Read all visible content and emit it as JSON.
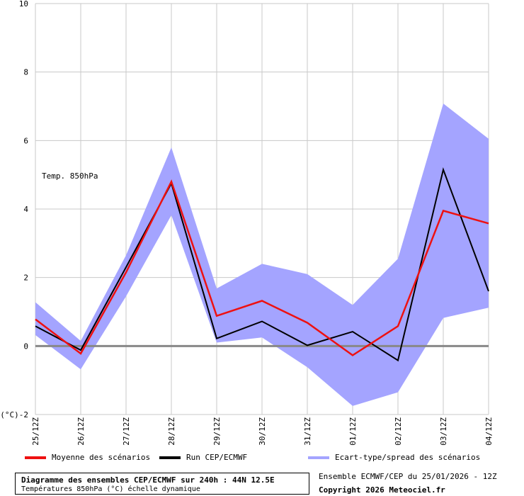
{
  "chart_data": {
    "type": "line",
    "annotation": "Temp. 850hPa",
    "ylabel": "(°C)",
    "ylim": [
      -2,
      10
    ],
    "yticks": [
      "10",
      "8",
      "6",
      "4",
      "2",
      "0",
      "-2"
    ],
    "ytick_values": [
      10,
      8,
      6,
      4,
      2,
      0,
      -2
    ],
    "categories": [
      "25/12Z",
      "26/12Z",
      "27/12Z",
      "28/12Z",
      "29/12Z",
      "30/12Z",
      "31/12Z",
      "01/12Z",
      "02/12Z",
      "03/12Z",
      "04/12Z"
    ],
    "grid": true,
    "series": [
      {
        "name": "Moyenne des scénarios",
        "color": "#ee1111",
        "values": [
          0.78,
          -0.22,
          2.15,
          4.8,
          0.88,
          1.32,
          0.68,
          -0.27,
          0.58,
          3.95,
          3.58
        ]
      },
      {
        "name": "Run CEP/ECMWF",
        "color": "#000000",
        "values": [
          0.58,
          -0.12,
          2.3,
          4.75,
          0.22,
          0.72,
          0.02,
          0.42,
          -0.42,
          5.15,
          1.6
        ]
      }
    ],
    "spread": {
      "name": "Ecart-type/spread des scénarios",
      "color": "#a4a4ff",
      "upper": [
        1.28,
        0.15,
        2.65,
        5.8,
        1.68,
        2.4,
        2.1,
        1.2,
        2.55,
        7.08,
        6.05
      ],
      "lower": [
        0.32,
        -0.68,
        1.45,
        3.82,
        0.1,
        0.25,
        -0.62,
        -1.75,
        -1.35,
        0.82,
        1.12
      ]
    }
  },
  "legend": {
    "mean_label": "Moyenne des scénarios",
    "run_label": "Run CEP/ECMWF",
    "spread_label": "Ecart-type/spread des scénarios"
  },
  "footer": {
    "title": "Diagramme des ensembles CEP/ECMWF sur 240h : 44N 12.5E",
    "subtitle": "Températures 850hPa (°C) échelle dynamique",
    "run_info": "Ensemble ECMWF/CEP du 25/01/2026 - 12Z",
    "copyright": "Copyright 2026 Meteociel.fr"
  }
}
